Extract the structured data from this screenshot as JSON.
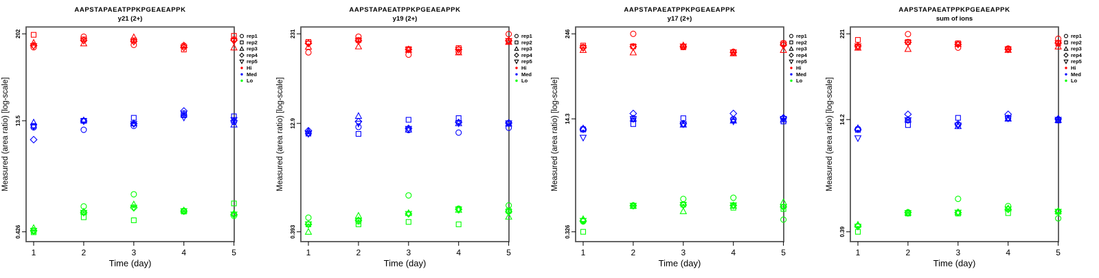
{
  "figure": {
    "title": "AAPSTAPAEATPPKPGEAEAPPK",
    "ylabel": "Measured (area ratio) [log-scale]",
    "xlabel": "Time (day)"
  },
  "legend": {
    "reps": [
      {
        "label": "rep1",
        "symbol": "circle"
      },
      {
        "label": "rep2",
        "symbol": "square"
      },
      {
        "label": "rep3",
        "symbol": "triangle-up"
      },
      {
        "label": "rep4",
        "symbol": "diamond"
      },
      {
        "label": "rep5",
        "symbol": "triangle-down"
      }
    ],
    "levels": [
      {
        "label": "Hi",
        "color": "#FF0000"
      },
      {
        "label": "Med",
        "color": "#0000FF"
      },
      {
        "label": "Lo",
        "color": "#00FF00"
      }
    ]
  },
  "chart_data": [
    {
      "type": "scatter",
      "title": "AAPSTAPAEATPPKPGEAEAPPK",
      "subtitle": "y21 (2+)",
      "xlabel": "Time (day)",
      "ylabel": "Measured (area ratio) [log-scale]",
      "y_scale": "log",
      "x": [
        1,
        2,
        3,
        4,
        5
      ],
      "x_ticks": [
        "1",
        "2",
        "3",
        "4",
        "5"
      ],
      "y_ticks": [
        202,
        13.5,
        0.426
      ],
      "legend_position": "right",
      "series": [
        {
          "group": "Hi",
          "rep": "rep1",
          "symbol": "circle",
          "values": [
            133,
            185,
            143,
            140,
            170
          ]
        },
        {
          "group": "Hi",
          "rep": "rep2",
          "symbol": "square",
          "values": [
            196,
            170,
            165,
            124,
            190
          ]
        },
        {
          "group": "Hi",
          "rep": "rep3",
          "symbol": "triangle-up",
          "values": [
            153,
            150,
            182,
            141,
            132
          ]
        },
        {
          "group": "Hi",
          "rep": "rep4",
          "symbol": "diamond",
          "values": [
            140,
            165,
            160,
            133,
            165
          ]
        },
        {
          "group": "Hi",
          "rep": "rep5",
          "symbol": "triangle-down",
          "values": [
            138,
            163,
            158,
            131,
            160
          ]
        },
        {
          "group": "Med",
          "rep": "rep1",
          "symbol": "circle",
          "values": [
            11.0,
            10.2,
            11.5,
            17.0,
            13.0
          ]
        },
        {
          "group": "Med",
          "rep": "rep2",
          "symbol": "square",
          "values": [
            11.5,
            13.5,
            14.8,
            16.0,
            15.5
          ]
        },
        {
          "group": "Med",
          "rep": "rep3",
          "symbol": "triangle-up",
          "values": [
            12.8,
            13.7,
            12.5,
            16.5,
            12.0
          ]
        },
        {
          "group": "Med",
          "rep": "rep4",
          "symbol": "diamond",
          "values": [
            7.5,
            13.4,
            12.3,
            18.3,
            13.5
          ]
        },
        {
          "group": "Med",
          "rep": "rep5",
          "symbol": "triangle-down",
          "values": [
            11.2,
            13.3,
            12.2,
            14.9,
            13.8
          ]
        },
        {
          "group": "Lo",
          "rep": "rep1",
          "symbol": "circle",
          "values": [
            0.435,
            0.94,
            1.37,
            0.82,
            0.7
          ]
        },
        {
          "group": "Lo",
          "rep": "rep2",
          "symbol": "square",
          "values": [
            0.42,
            0.67,
            0.61,
            0.8,
            1.03
          ]
        },
        {
          "group": "Lo",
          "rep": "rep3",
          "symbol": "triangle-up",
          "values": [
            0.48,
            0.8,
            1.0,
            0.83,
            0.76
          ]
        },
        {
          "group": "Lo",
          "rep": "rep4",
          "symbol": "diamond",
          "values": [
            0.44,
            0.78,
            0.9,
            0.81,
            0.73
          ]
        },
        {
          "group": "Lo",
          "rep": "rep5",
          "symbol": "triangle-down",
          "values": [
            0.44,
            0.77,
            0.9,
            0.81,
            0.73
          ]
        }
      ]
    },
    {
      "type": "scatter",
      "title": "AAPSTAPAEATPPKPGEAEAPPK",
      "subtitle": "y19 (2+)",
      "xlabel": "Time (day)",
      "ylabel": "Measured (area ratio) [log-scale]",
      "y_scale": "log",
      "x": [
        1,
        2,
        3,
        4,
        5
      ],
      "x_ticks": [
        "1",
        "2",
        "3",
        "4",
        "5"
      ],
      "y_ticks": [
        231,
        12.9,
        0.393
      ],
      "legend_position": "right",
      "series": [
        {
          "group": "Hi",
          "rep": "rep1",
          "symbol": "circle",
          "values": [
            127,
            211,
            118,
            130,
            229
          ]
        },
        {
          "group": "Hi",
          "rep": "rep2",
          "symbol": "square",
          "values": [
            178,
            189,
            141,
            146,
            183
          ]
        },
        {
          "group": "Hi",
          "rep": "rep3",
          "symbol": "triangle-up",
          "values": [
            152,
            154,
            138,
            127,
            178
          ]
        },
        {
          "group": "Hi",
          "rep": "rep4",
          "symbol": "diamond",
          "values": [
            170,
            185,
            140,
            140,
            185
          ]
        },
        {
          "group": "Hi",
          "rep": "rep5",
          "symbol": "triangle-down",
          "values": [
            168,
            183,
            139,
            138,
            184
          ]
        },
        {
          "group": "Med",
          "rep": "rep1",
          "symbol": "circle",
          "values": [
            9.5,
            11.5,
            10.4,
            9.6,
            11.2
          ]
        },
        {
          "group": "Med",
          "rep": "rep2",
          "symbol": "square",
          "values": [
            9.3,
            9.2,
            14.5,
            15.3,
            13.0
          ]
        },
        {
          "group": "Med",
          "rep": "rep3",
          "symbol": "triangle-up",
          "values": [
            10.0,
            16.4,
            10.6,
            13.0,
            12.8
          ]
        },
        {
          "group": "Med",
          "rep": "rep4",
          "symbol": "diamond",
          "values": [
            10.2,
            13.7,
            11.0,
            13.3,
            13.1
          ]
        },
        {
          "group": "Med",
          "rep": "rep5",
          "symbol": "triangle-down",
          "values": [
            9.2,
            12.8,
            10.8,
            12.9,
            12.9
          ]
        },
        {
          "group": "Lo",
          "rep": "rep1",
          "symbol": "circle",
          "values": [
            0.62,
            0.55,
            1.27,
            0.83,
            0.92
          ]
        },
        {
          "group": "Lo",
          "rep": "rep2",
          "symbol": "square",
          "values": [
            0.5,
            0.5,
            0.54,
            0.5,
            0.77
          ]
        },
        {
          "group": "Lo",
          "rep": "rep3",
          "symbol": "triangle-up",
          "values": [
            0.393,
            0.66,
            0.72,
            0.8,
            0.64
          ]
        },
        {
          "group": "Lo",
          "rep": "rep4",
          "symbol": "diamond",
          "values": [
            0.5,
            0.57,
            0.7,
            0.81,
            0.75
          ]
        },
        {
          "group": "Lo",
          "rep": "rep5",
          "symbol": "triangle-down",
          "values": [
            0.5,
            0.56,
            0.7,
            0.81,
            0.74
          ]
        }
      ]
    },
    {
      "type": "scatter",
      "title": "AAPSTAPAEATPPKPGEAEAPPK",
      "subtitle": "y17 (2+)",
      "xlabel": "Time (day)",
      "ylabel": "Measured (area ratio) [log-scale]",
      "y_scale": "log",
      "x": [
        1,
        2,
        3,
        4,
        5
      ],
      "x_ticks": [
        "1",
        "2",
        "3",
        "4",
        "5"
      ],
      "y_ticks": [
        246,
        14.3,
        0.326
      ],
      "legend_position": "right",
      "series": [
        {
          "group": "Hi",
          "rep": "rep1",
          "symbol": "circle",
          "values": [
            158,
            246,
            160,
            135,
            180
          ]
        },
        {
          "group": "Hi",
          "rep": "rep2",
          "symbol": "square",
          "values": [
            166,
            162,
            157,
            132,
            178
          ]
        },
        {
          "group": "Hi",
          "rep": "rep3",
          "symbol": "triangle-up",
          "values": [
            143,
            132,
            167,
            128,
            143
          ]
        },
        {
          "group": "Hi",
          "rep": "rep4",
          "symbol": "diamond",
          "values": [
            155,
            160,
            162,
            133,
            170
          ]
        },
        {
          "group": "Hi",
          "rep": "rep5",
          "symbol": "triangle-down",
          "values": [
            152,
            158,
            161,
            132,
            168
          ]
        },
        {
          "group": "Med",
          "rep": "rep1",
          "symbol": "circle",
          "values": [
            10.2,
            14.6,
            12.0,
            14.2,
            14.5
          ]
        },
        {
          "group": "Med",
          "rep": "rep2",
          "symbol": "square",
          "values": [
            10.0,
            12.0,
            14.6,
            13.8,
            13.1
          ]
        },
        {
          "group": "Med",
          "rep": "rep3",
          "symbol": "triangle-up",
          "values": [
            10.4,
            14.4,
            11.8,
            13.5,
            14.0
          ]
        },
        {
          "group": "Med",
          "rep": "rep4",
          "symbol": "diamond",
          "values": [
            10.1,
            17.1,
            12.2,
            17.1,
            14.8
          ]
        },
        {
          "group": "Med",
          "rep": "rep5",
          "symbol": "triangle-down",
          "values": [
            7.6,
            14.2,
            11.9,
            13.1,
            14.3
          ]
        },
        {
          "group": "Lo",
          "rep": "rep1",
          "symbol": "circle",
          "values": [
            0.46,
            0.79,
            0.98,
            1.02,
            0.49
          ]
        },
        {
          "group": "Lo",
          "rep": "rep2",
          "symbol": "square",
          "values": [
            0.326,
            0.77,
            0.81,
            0.73,
            0.7
          ]
        },
        {
          "group": "Lo",
          "rep": "rep3",
          "symbol": "triangle-up",
          "values": [
            0.5,
            0.78,
            0.65,
            0.78,
            0.88
          ]
        },
        {
          "group": "Lo",
          "rep": "rep4",
          "symbol": "diamond",
          "values": [
            0.47,
            0.78,
            0.8,
            0.79,
            0.75
          ]
        },
        {
          "group": "Lo",
          "rep": "rep5",
          "symbol": "triangle-down",
          "values": [
            0.47,
            0.78,
            0.8,
            0.79,
            0.74
          ]
        }
      ]
    },
    {
      "type": "scatter",
      "title": "AAPSTAPAEATPPKPGEAEAPPK",
      "subtitle": "sum of ions",
      "xlabel": "Time (day)",
      "ylabel": "Measured (area ratio) [log-scale]",
      "y_scale": "log",
      "x": [
        1,
        2,
        3,
        4,
        5
      ],
      "x_ticks": [
        "1",
        "2",
        "3",
        "4",
        "5"
      ],
      "y_ticks": [
        221,
        14.2,
        0.39
      ],
      "legend_position": "right",
      "series": [
        {
          "group": "Hi",
          "rep": "rep1",
          "symbol": "circle",
          "values": [
            145,
            219,
            142,
            138,
            189
          ]
        },
        {
          "group": "Hi",
          "rep": "rep2",
          "symbol": "square",
          "values": [
            182,
            170,
            163,
            136,
            163
          ]
        },
        {
          "group": "Hi",
          "rep": "rep3",
          "symbol": "triangle-up",
          "values": [
            142,
            136,
            160,
            132,
            147
          ]
        },
        {
          "group": "Hi",
          "rep": "rep4",
          "symbol": "diamond",
          "values": [
            150,
            168,
            158,
            135,
            165
          ]
        },
        {
          "group": "Hi",
          "rep": "rep5",
          "symbol": "triangle-down",
          "values": [
            148,
            166,
            157,
            134,
            164
          ]
        },
        {
          "group": "Med",
          "rep": "rep1",
          "symbol": "circle",
          "values": [
            10.5,
            14.0,
            12.0,
            15.0,
            14.2
          ]
        },
        {
          "group": "Med",
          "rep": "rep2",
          "symbol": "square",
          "values": [
            10.2,
            11.9,
            15.0,
            14.8,
            13.8
          ]
        },
        {
          "group": "Med",
          "rep": "rep3",
          "symbol": "triangle-up",
          "values": [
            10.8,
            14.2,
            11.5,
            14.6,
            14.0
          ]
        },
        {
          "group": "Med",
          "rep": "rep4",
          "symbol": "diamond",
          "values": [
            10.4,
            16.8,
            12.3,
            16.8,
            14.5
          ]
        },
        {
          "group": "Med",
          "rep": "rep5",
          "symbol": "triangle-down",
          "values": [
            7.8,
            13.9,
            11.8,
            14.7,
            14.1
          ]
        },
        {
          "group": "Lo",
          "rep": "rep1",
          "symbol": "circle",
          "values": [
            0.47,
            0.73,
            1.12,
            0.89,
            0.6
          ]
        },
        {
          "group": "Lo",
          "rep": "rep2",
          "symbol": "square",
          "values": [
            0.39,
            0.7,
            0.7,
            0.71,
            0.74
          ]
        },
        {
          "group": "Lo",
          "rep": "rep3",
          "symbol": "triangle-up",
          "values": [
            0.49,
            0.72,
            0.73,
            0.83,
            0.76
          ]
        },
        {
          "group": "Lo",
          "rep": "rep4",
          "symbol": "diamond",
          "values": [
            0.47,
            0.72,
            0.72,
            0.8,
            0.75
          ]
        },
        {
          "group": "Lo",
          "rep": "rep5",
          "symbol": "triangle-down",
          "values": [
            0.46,
            0.71,
            0.72,
            0.8,
            0.74
          ]
        }
      ]
    }
  ]
}
